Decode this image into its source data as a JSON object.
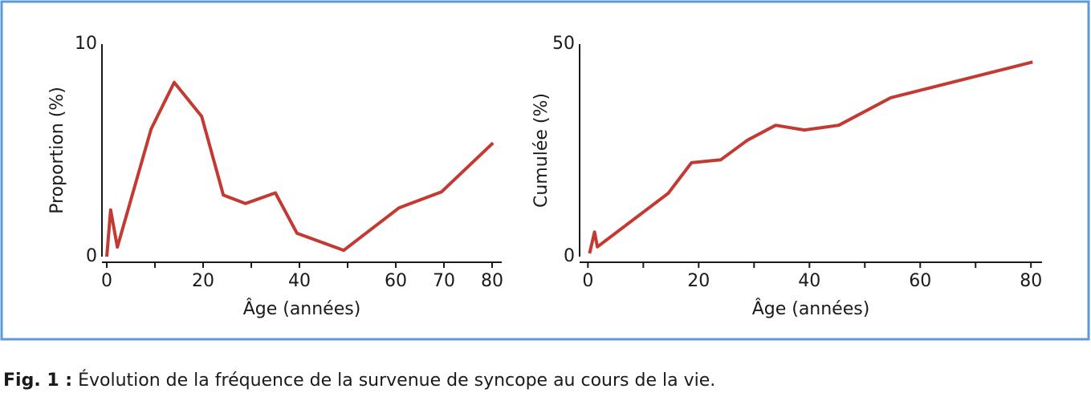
{
  "chart_data": [
    {
      "type": "line",
      "color": "#c33a32",
      "ylabel": "Proportion (%)",
      "xlabel": "Âge (années)",
      "x": [
        0,
        0.8,
        2.2,
        9.2,
        14,
        19.7,
        24.2,
        28.8,
        35,
        39.5,
        49.2,
        60.7,
        69.5,
        80.2
      ],
      "values": [
        0,
        2.2,
        0.45,
        6.0,
        8.2,
        6.6,
        2.9,
        2.5,
        3.0,
        1.1,
        0.3,
        2.3,
        3.05,
        5.35
      ],
      "xlim": [
        -1,
        82
      ],
      "ylim": [
        0,
        10
      ],
      "xticks": [
        0,
        20,
        40,
        60,
        70,
        80
      ],
      "xminor": [
        10,
        30,
        50
      ],
      "yticks": [
        0,
        10
      ]
    },
    {
      "type": "line",
      "color": "#c33a32",
      "ylabel": "Cumulée (%)",
      "xlabel": "Âge (années)",
      "x": [
        0.3,
        1.2,
        1.7,
        14.5,
        18.7,
        24,
        28.8,
        33.9,
        39.1,
        45.3,
        54.7,
        80.3
      ],
      "values": [
        0.75,
        5.8,
        2.3,
        14.9,
        22.1,
        22.8,
        27.4,
        30.9,
        29.8,
        30.9,
        37.4,
        45.8
      ],
      "xlim": [
        -1.5,
        82
      ],
      "ylim": [
        0,
        50
      ],
      "xticks": [
        0,
        20,
        40,
        60,
        80
      ],
      "xminor": [
        10,
        30,
        50,
        70
      ],
      "yticks": [
        0,
        50
      ]
    }
  ],
  "caption": {
    "label": "Fig. 1 :",
    "text": "Évolution de la fréquence de la survenue de syncope au cours de la vie."
  }
}
